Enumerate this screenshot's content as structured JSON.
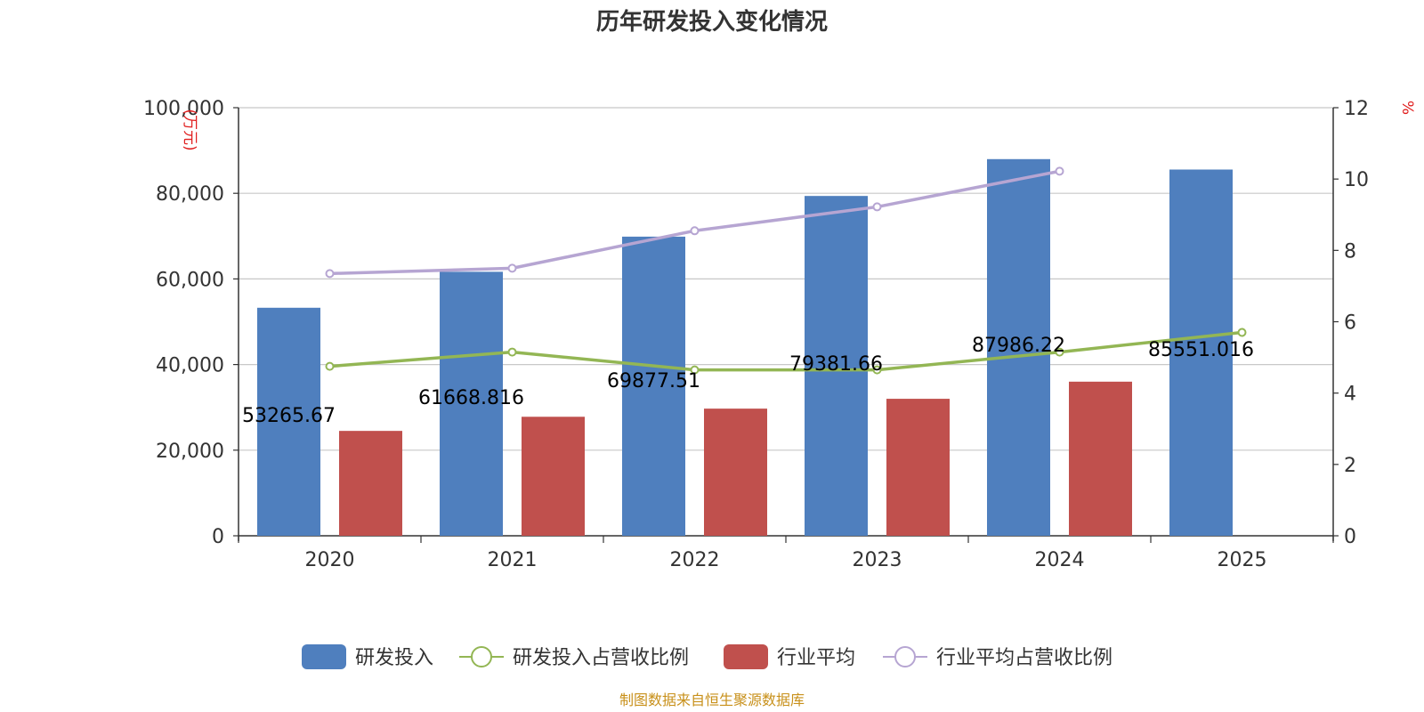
{
  "chart_data": {
    "type": "bar",
    "title": "历年研发投入变化情况",
    "categories": [
      "2020",
      "2021",
      "2022",
      "2023",
      "2024",
      "2025"
    ],
    "series": [
      {
        "name": "研发投入",
        "kind": "bar",
        "axis": "left",
        "color": "#4f7fbe",
        "values": [
          53265.67,
          61668.816,
          69877.51,
          79381.66,
          87986.22,
          85551.016
        ]
      },
      {
        "name": "研发投入占营收比例",
        "kind": "line",
        "axis": "right",
        "color": "#93b654",
        "values": [
          4.75,
          5.15,
          4.65,
          4.65,
          5.15,
          5.7
        ]
      },
      {
        "name": "行业平均",
        "kind": "bar",
        "axis": "left",
        "color": "#c0504d",
        "values": [
          24500,
          27800,
          29700,
          32000,
          36000,
          null
        ]
      },
      {
        "name": "行业平均占营收比例",
        "kind": "line",
        "axis": "right",
        "color": "#b6a5d2",
        "values": [
          7.35,
          7.5,
          8.55,
          9.22,
          10.22,
          null
        ]
      }
    ],
    "data_labels": [
      "53265.67",
      "61668.816",
      "69877.51",
      "79381.66",
      "87986.22",
      "85551.016"
    ],
    "y_left": {
      "unit": "万元",
      "ylim": [
        0,
        100000
      ],
      "ticks": [
        "0",
        "20,000",
        "40,000",
        "60,000",
        "80,000",
        "100,000"
      ]
    },
    "y_right": {
      "unit": "%",
      "ylim": [
        0,
        12
      ],
      "ticks": [
        "0",
        "2",
        "4",
        "6",
        "8",
        "10",
        "12"
      ]
    },
    "grid": true,
    "legend_position": "bottom"
  },
  "source": "制图数据来自恒生聚源数据库"
}
